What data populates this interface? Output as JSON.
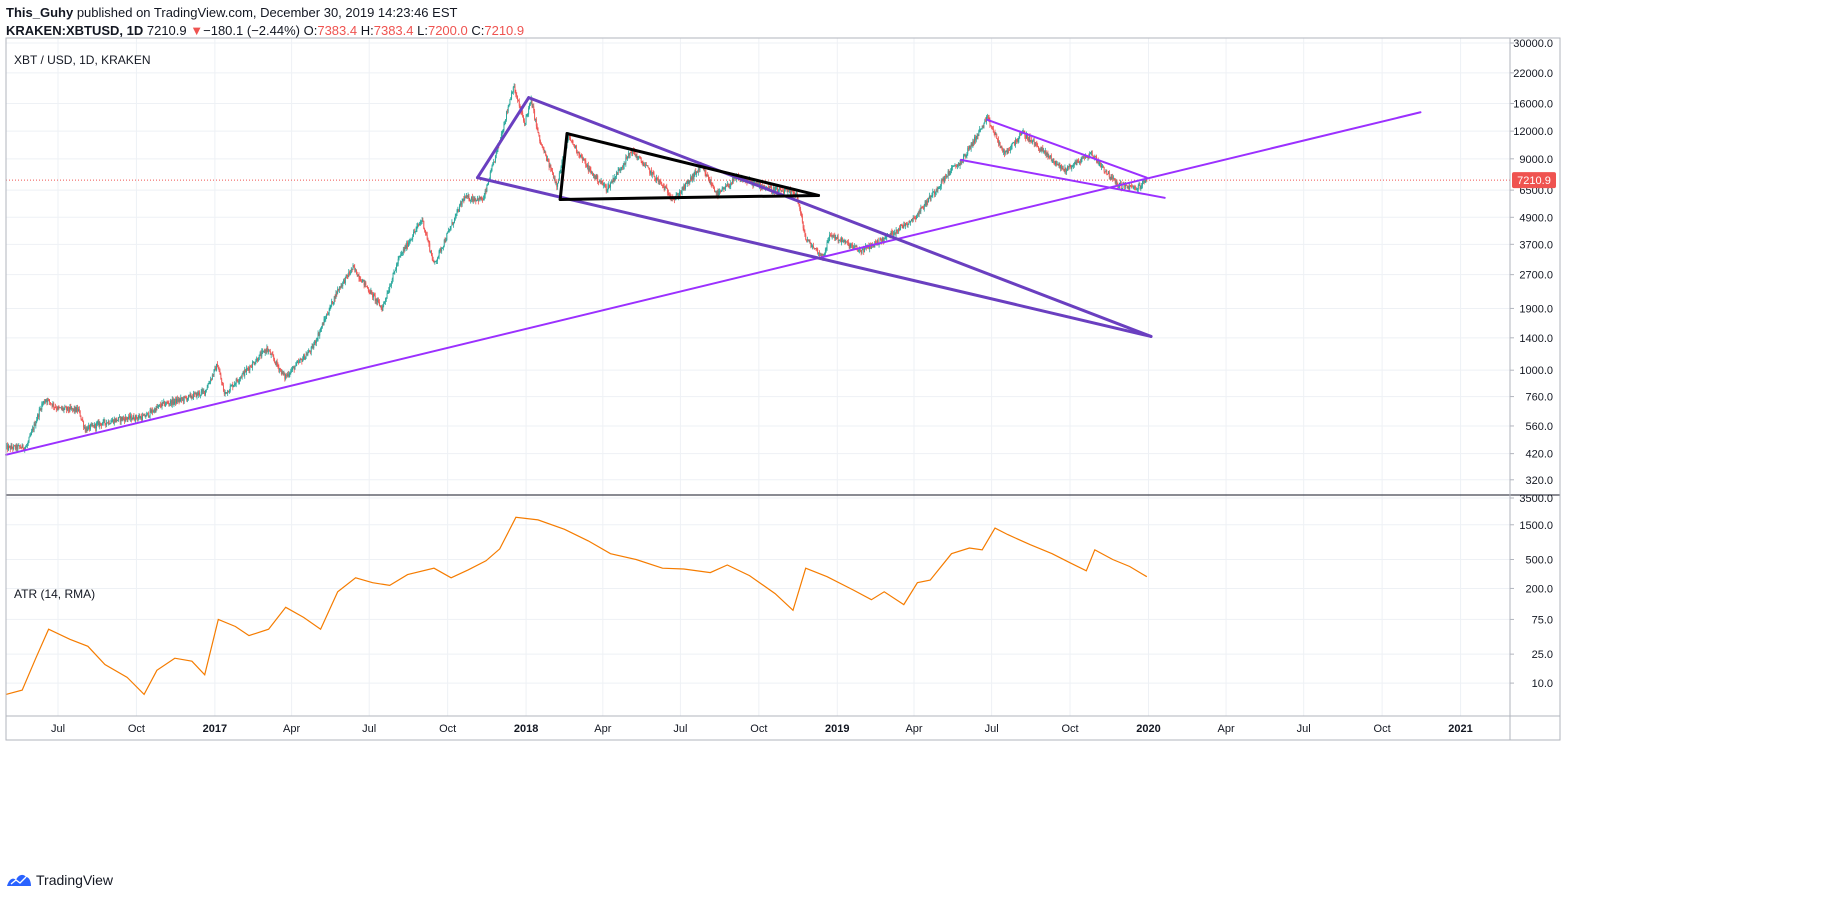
{
  "header": {
    "author": "This_Guhy",
    "published_text": "published on TradingView.com, December 30, 2019 14:23:46 EST",
    "symbol": "KRAKEN:XBTUSD, 1D",
    "last": "7210.9",
    "change_arrow": "▼",
    "change": "−180.1 (−2.44%)",
    "open_label": "O:",
    "open": "7383.4",
    "high_label": "H:",
    "high": "7383.4",
    "low_label": "L:",
    "low": "7200.0",
    "close_label": "C:",
    "close": "7210.9"
  },
  "footer": {
    "brand": "TradingView",
    "logo_icon": "tradingview-logo-icon"
  },
  "colors": {
    "candle_up": "#26a69a",
    "candle_down": "#ef5350",
    "atr_line": "#f57c00",
    "trend_purple": "#6a3fc0",
    "trend_violet": "#9b30ff",
    "triangle": "#000000",
    "price_marker": "#ef5350",
    "grid": "#eef1f5",
    "border": "#b2b5be"
  },
  "chart_data": [
    {
      "type": "candlestick",
      "title": "XBT / USD, 1D, KRAKEN",
      "y_scale": "log",
      "ylim": [
        300,
        30000
      ],
      "xlim": [
        "2016-05-01",
        "2021-02-28"
      ],
      "x_tick_labels": [
        {
          "date": "2016-07-01",
          "label": "Jul"
        },
        {
          "date": "2016-10-01",
          "label": "Oct"
        },
        {
          "date": "2017-01-01",
          "label": "2017"
        },
        {
          "date": "2017-04-01",
          "label": "Apr"
        },
        {
          "date": "2017-07-01",
          "label": "Jul"
        },
        {
          "date": "2017-10-01",
          "label": "Oct"
        },
        {
          "date": "2018-01-01",
          "label": "2018"
        },
        {
          "date": "2018-04-01",
          "label": "Apr"
        },
        {
          "date": "2018-07-01",
          "label": "Jul"
        },
        {
          "date": "2018-10-01",
          "label": "Oct"
        },
        {
          "date": "2019-01-01",
          "label": "2019"
        },
        {
          "date": "2019-04-01",
          "label": "Apr"
        },
        {
          "date": "2019-07-01",
          "label": "Jul"
        },
        {
          "date": "2019-10-01",
          "label": "Oct"
        },
        {
          "date": "2020-01-01",
          "label": "2020"
        },
        {
          "date": "2020-04-01",
          "label": "Apr"
        },
        {
          "date": "2020-07-01",
          "label": "Jul"
        },
        {
          "date": "2020-10-01",
          "label": "Oct"
        },
        {
          "date": "2021-01-01",
          "label": "2021"
        }
      ],
      "y_tick_labels": [
        {
          "value": 30000,
          "label": "30000.0"
        },
        {
          "value": 22000,
          "label": "22000.0"
        },
        {
          "value": 16000,
          "label": "16000.0"
        },
        {
          "value": 12000,
          "label": "12000.0"
        },
        {
          "value": 9000,
          "label": "9000.0"
        },
        {
          "value": 6500,
          "label": "6500.0"
        },
        {
          "value": 4900,
          "label": "4900.0"
        },
        {
          "value": 3700,
          "label": "3700.0"
        },
        {
          "value": 2700,
          "label": "2700.0"
        },
        {
          "value": 1900,
          "label": "1900.0"
        },
        {
          "value": 1400,
          "label": "1400.0"
        },
        {
          "value": 1000,
          "label": "1000.0"
        },
        {
          "value": 760,
          "label": "760.0"
        },
        {
          "value": 560,
          "label": "560.0"
        },
        {
          "value": 420,
          "label": "420.0"
        },
        {
          "value": 320,
          "label": "320.0"
        }
      ],
      "last_price": {
        "value": 7210.9,
        "label": "7210.9"
      },
      "price_path": [
        [
          "2016-05-01",
          445
        ],
        [
          "2016-05-25",
          450
        ],
        [
          "2016-06-12",
          700
        ],
        [
          "2016-06-17",
          740
        ],
        [
          "2016-07-01",
          670
        ],
        [
          "2016-07-25",
          660
        ],
        [
          "2016-08-02",
          540
        ],
        [
          "2016-08-20",
          575
        ],
        [
          "2016-09-15",
          605
        ],
        [
          "2016-10-10",
          615
        ],
        [
          "2016-10-31",
          700
        ],
        [
          "2016-11-25",
          740
        ],
        [
          "2016-12-20",
          800
        ],
        [
          "2017-01-04",
          1060
        ],
        [
          "2017-01-12",
          780
        ],
        [
          "2017-02-08",
          1010
        ],
        [
          "2017-03-03",
          1250
        ],
        [
          "2017-03-24",
          930
        ],
        [
          "2017-04-25",
          1250
        ],
        [
          "2017-05-25",
          2300
        ],
        [
          "2017-06-12",
          2900
        ],
        [
          "2017-07-16",
          1900
        ],
        [
          "2017-08-05",
          3200
        ],
        [
          "2017-09-01",
          4800
        ],
        [
          "2017-09-15",
          3000
        ],
        [
          "2017-10-20",
          6000
        ],
        [
          "2017-11-12",
          5900
        ],
        [
          "2017-12-01",
          10800
        ],
        [
          "2017-12-17",
          19200
        ],
        [
          "2017-12-30",
          13000
        ],
        [
          "2018-01-07",
          16500
        ],
        [
          "2018-01-17",
          10800
        ],
        [
          "2018-02-06",
          6900
        ],
        [
          "2018-02-20",
          11300
        ],
        [
          "2018-03-18",
          7800
        ],
        [
          "2018-04-06",
          6600
        ],
        [
          "2018-05-05",
          9800
        ],
        [
          "2018-06-24",
          5900
        ],
        [
          "2018-07-25",
          8300
        ],
        [
          "2018-08-14",
          6200
        ],
        [
          "2018-09-05",
          7400
        ],
        [
          "2018-10-20",
          6500
        ],
        [
          "2018-11-14",
          6300
        ],
        [
          "2018-11-25",
          3900
        ],
        [
          "2018-12-15",
          3250
        ],
        [
          "2018-12-24",
          4100
        ],
        [
          "2019-01-28",
          3450
        ],
        [
          "2019-02-24",
          3900
        ],
        [
          "2019-04-02",
          4900
        ],
        [
          "2019-05-14",
          8000
        ],
        [
          "2019-05-26",
          8700
        ],
        [
          "2019-06-26",
          13700
        ],
        [
          "2019-07-16",
          9400
        ],
        [
          "2019-08-06",
          11800
        ],
        [
          "2019-09-24",
          8000
        ],
        [
          "2019-10-26",
          9500
        ],
        [
          "2019-11-25",
          6900
        ],
        [
          "2019-12-18",
          6600
        ],
        [
          "2019-12-30",
          7210.9
        ]
      ],
      "drawings": [
        {
          "name": "long-term-support",
          "color": "#9b30ff",
          "points": [
            [
              "2016-05-01",
              415
            ],
            [
              "2020-11-15",
              14600
            ]
          ]
        },
        {
          "name": "upper-wedge-line",
          "color": "#6a3fc0",
          "points": [
            [
              "2018-01-04",
              17000
            ],
            [
              "2020-01-04",
              1420
            ]
          ]
        },
        {
          "name": "lower-wedge-line",
          "color": "#6a3fc0",
          "points": [
            [
              "2017-11-05",
              7400
            ],
            [
              "2020-01-04",
              1420
            ]
          ]
        },
        {
          "name": "wedge-left-edge",
          "color": "#6a3fc0",
          "points": [
            [
              "2017-11-05",
              7400
            ],
            [
              "2018-01-04",
              17000
            ]
          ]
        },
        {
          "name": "triangle-top",
          "color": "#000000",
          "points": [
            [
              "2018-02-18",
              11700
            ],
            [
              "2018-12-10",
              6150
            ]
          ]
        },
        {
          "name": "triangle-base",
          "color": "#000000",
          "points": [
            [
              "2018-02-10",
              5900
            ],
            [
              "2018-12-10",
              6150
            ]
          ]
        },
        {
          "name": "triangle-left",
          "color": "#000000",
          "points": [
            [
              "2018-02-10",
              5900
            ],
            [
              "2018-02-18",
              11700
            ]
          ]
        },
        {
          "name": "channel-top",
          "color": "#9b30ff",
          "points": [
            [
              "2019-06-26",
              13500
            ],
            [
              "2019-12-30",
              7400
            ]
          ]
        },
        {
          "name": "channel-bottom",
          "color": "#9b30ff",
          "points": [
            [
              "2019-05-26",
              8900
            ],
            [
              "2020-01-20",
              6000
            ]
          ]
        }
      ]
    },
    {
      "type": "line",
      "title": "ATR (14, RMA)",
      "y_scale": "log",
      "ylim": [
        5,
        3500
      ],
      "y_tick_labels": [
        {
          "value": 3500,
          "label": "3500.0"
        },
        {
          "value": 1500,
          "label": "1500.0"
        },
        {
          "value": 500,
          "label": "500.0"
        },
        {
          "value": 200,
          "label": "200.0"
        },
        {
          "value": 75,
          "label": "75.0"
        },
        {
          "value": 25,
          "label": "25.0"
        },
        {
          "value": 10,
          "label": "10.0"
        }
      ],
      "series": [
        {
          "points": [
            [
              "2016-05-01",
              7
            ],
            [
              "2016-05-20",
              8
            ],
            [
              "2016-06-05",
              22
            ],
            [
              "2016-06-20",
              55
            ],
            [
              "2016-07-15",
              40
            ],
            [
              "2016-08-05",
              32
            ],
            [
              "2016-08-25",
              18
            ],
            [
              "2016-09-20",
              12
            ],
            [
              "2016-10-10",
              7
            ],
            [
              "2016-10-25",
              15
            ],
            [
              "2016-11-15",
              22
            ],
            [
              "2016-12-05",
              20
            ],
            [
              "2016-12-20",
              13
            ],
            [
              "2017-01-05",
              75
            ],
            [
              "2017-01-25",
              60
            ],
            [
              "2017-02-10",
              45
            ],
            [
              "2017-03-05",
              55
            ],
            [
              "2017-03-25",
              110
            ],
            [
              "2017-04-15",
              80
            ],
            [
              "2017-05-05",
              55
            ],
            [
              "2017-05-25",
              180
            ],
            [
              "2017-06-15",
              280
            ],
            [
              "2017-07-05",
              240
            ],
            [
              "2017-07-25",
              220
            ],
            [
              "2017-08-15",
              310
            ],
            [
              "2017-09-15",
              380
            ],
            [
              "2017-10-05",
              280
            ],
            [
              "2017-10-25",
              360
            ],
            [
              "2017-11-15",
              480
            ],
            [
              "2017-12-01",
              700
            ],
            [
              "2017-12-20",
              1900
            ],
            [
              "2018-01-15",
              1750
            ],
            [
              "2018-02-15",
              1300
            ],
            [
              "2018-03-15",
              900
            ],
            [
              "2018-04-10",
              600
            ],
            [
              "2018-05-10",
              500
            ],
            [
              "2018-06-10",
              380
            ],
            [
              "2018-07-05",
              370
            ],
            [
              "2018-08-05",
              330
            ],
            [
              "2018-08-25",
              420
            ],
            [
              "2018-09-20",
              300
            ],
            [
              "2018-10-20",
              170
            ],
            [
              "2018-11-10",
              100
            ],
            [
              "2018-11-25",
              380
            ],
            [
              "2018-12-20",
              290
            ],
            [
              "2019-01-20",
              190
            ],
            [
              "2019-02-10",
              140
            ],
            [
              "2019-02-25",
              180
            ],
            [
              "2019-03-20",
              120
            ],
            [
              "2019-04-05",
              240
            ],
            [
              "2019-04-20",
              260
            ],
            [
              "2019-05-15",
              600
            ],
            [
              "2019-06-05",
              720
            ],
            [
              "2019-06-20",
              680
            ],
            [
              "2019-07-05",
              1350
            ],
            [
              "2019-07-20",
              1100
            ],
            [
              "2019-08-15",
              800
            ],
            [
              "2019-09-10",
              600
            ],
            [
              "2019-10-01",
              450
            ],
            [
              "2019-10-20",
              350
            ],
            [
              "2019-10-30",
              680
            ],
            [
              "2019-11-20",
              500
            ],
            [
              "2019-12-10",
              400
            ],
            [
              "2019-12-30",
              290
            ]
          ]
        }
      ]
    }
  ]
}
